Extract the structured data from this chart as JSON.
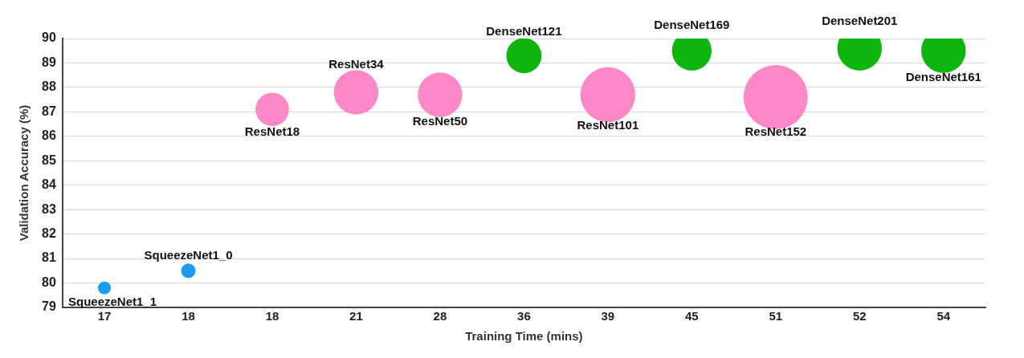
{
  "chart_data": {
    "type": "bubble",
    "xlabel": "Training Time (mins)",
    "ylabel": "Validation Accuracy (%)",
    "categories": [
      "17",
      "18",
      "18",
      "21",
      "28",
      "36",
      "39",
      "45",
      "51",
      "52",
      "54"
    ],
    "values": [
      79.8,
      80.5,
      87.1,
      87.8,
      87.7,
      89.3,
      87.7,
      89.5,
      87.6,
      89.6,
      89.5
    ],
    "sizes": [
      0.04,
      0.05,
      0.27,
      0.48,
      0.48,
      0.3,
      0.73,
      0.38,
      1,
      0.48,
      0.48
    ],
    "colors": [
      "#1a9af0",
      "#1a9af0",
      "#fc88c8",
      "#fc88c8",
      "#fc88c8",
      "#0cb60c",
      "#fc88c8",
      "#0cb60c",
      "#fc88c8",
      "#0cb60c",
      "#0cb60c"
    ],
    "ylim": [
      79,
      90
    ],
    "yticks": [
      79,
      80,
      81,
      82,
      83,
      84,
      85,
      86,
      87,
      88,
      89,
      90
    ],
    "grid": "y",
    "legend": false,
    "annotations": [
      "SqueezeNet1_1",
      "SqueezeNet1_0",
      "ResNet18",
      "ResNet34",
      "ResNet50",
      "DenseNet121",
      "ResNet101",
      "DenseNet169",
      "ResNet152",
      "DenseNet201",
      "DenseNet161"
    ]
  }
}
